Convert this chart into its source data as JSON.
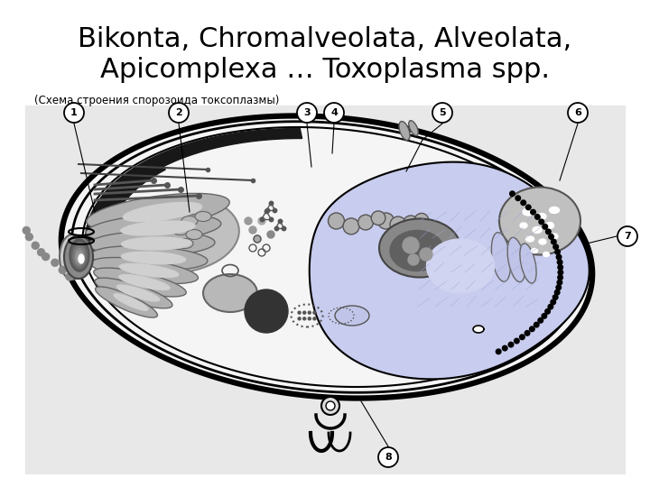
{
  "title_line1": "Bikonta, Chromalveolata, Alveolata,",
  "title_line2": "Apicomplexa … Toxoplasma spp.",
  "subtitle": "(Схема строения спорозоида токсоплазмы)",
  "bg_color": "#ffffff",
  "diag_bg": "#e8e8e8",
  "cell_interior": "#f5f5f5",
  "light_blue": "#c8ccee",
  "dark_gray": "#505050",
  "mid_gray": "#888888",
  "light_gray": "#aaaaaa",
  "very_dark": "#202020",
  "golgi_gray": "#aaaaaa"
}
